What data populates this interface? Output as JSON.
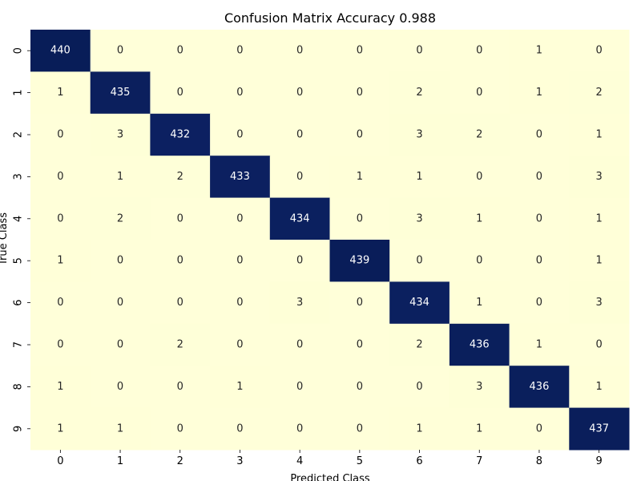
{
  "chart_data": {
    "type": "heatmap",
    "title": "Confusion Matrix Accuracy 0.988",
    "xlabel": "Predicted Class",
    "ylabel": "True Class",
    "x_categories": [
      "0",
      "1",
      "2",
      "3",
      "4",
      "5",
      "6",
      "7",
      "8",
      "9"
    ],
    "y_categories": [
      "0",
      "1",
      "2",
      "3",
      "4",
      "5",
      "6",
      "7",
      "8",
      "9"
    ],
    "values": [
      [
        440,
        0,
        0,
        0,
        0,
        0,
        0,
        0,
        1,
        0
      ],
      [
        1,
        435,
        0,
        0,
        0,
        0,
        2,
        0,
        1,
        2
      ],
      [
        0,
        3,
        432,
        0,
        0,
        0,
        3,
        2,
        0,
        1
      ],
      [
        0,
        1,
        2,
        433,
        0,
        1,
        1,
        0,
        0,
        3
      ],
      [
        0,
        2,
        0,
        0,
        434,
        0,
        3,
        1,
        0,
        1
      ],
      [
        1,
        0,
        0,
        0,
        0,
        439,
        0,
        0,
        0,
        1
      ],
      [
        0,
        0,
        0,
        0,
        3,
        0,
        434,
        1,
        0,
        3
      ],
      [
        0,
        0,
        2,
        0,
        0,
        0,
        2,
        436,
        1,
        0
      ],
      [
        1,
        0,
        0,
        1,
        0,
        0,
        0,
        3,
        436,
        1
      ],
      [
        1,
        1,
        0,
        0,
        0,
        0,
        1,
        1,
        0,
        437
      ]
    ],
    "colormap": "YlGnBu",
    "color_low": "#ffffd9",
    "color_high": "#081d58",
    "colorbar": false,
    "grid": false
  }
}
